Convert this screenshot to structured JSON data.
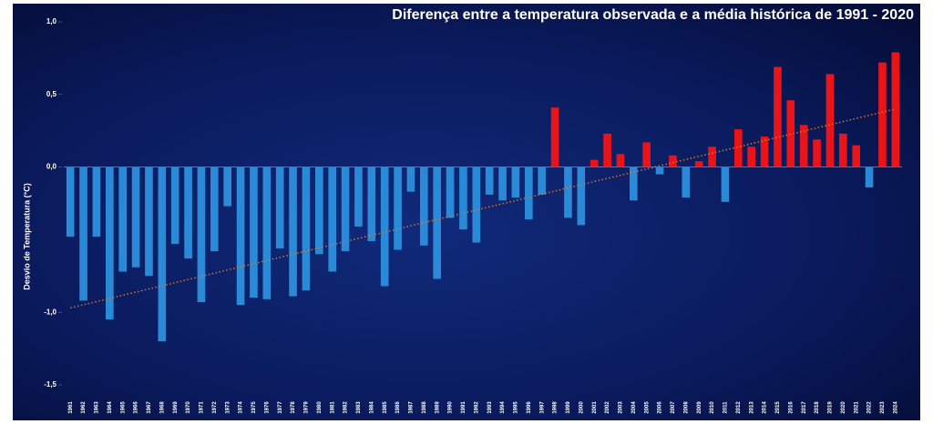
{
  "chart_data": {
    "type": "bar",
    "title": "Diferença entre a temperatura observada e a média histórica de 1991 - 2020",
    "y_label": "Desvio de Temperatura (°C)",
    "categories": [
      "1961",
      "1962",
      "1963",
      "1964",
      "1965",
      "1966",
      "1967",
      "1968",
      "1969",
      "1970",
      "1971",
      "1972",
      "1973",
      "1974",
      "1975",
      "1976",
      "1977",
      "1978",
      "1979",
      "1980",
      "1981",
      "1982",
      "1983",
      "1984",
      "1985",
      "1986",
      "1987",
      "1988",
      "1989",
      "1990",
      "1991",
      "1992",
      "1993",
      "1994",
      "1995",
      "1996",
      "1997",
      "1998",
      "1999",
      "2000",
      "2001",
      "2002",
      "2003",
      "2004",
      "2005",
      "2006",
      "2007",
      "2008",
      "2009",
      "2010",
      "2011",
      "2012",
      "2013",
      "2014",
      "2015",
      "2016",
      "2017",
      "2018",
      "2019",
      "2020",
      "2021",
      "2022",
      "2023",
      "2024"
    ],
    "values": [
      -0.48,
      -0.92,
      -0.48,
      -1.05,
      -0.72,
      -0.69,
      -0.75,
      -1.2,
      -0.53,
      -0.63,
      -0.93,
      -0.58,
      -0.27,
      -0.95,
      -0.9,
      -0.91,
      -0.56,
      -0.89,
      -0.85,
      -0.6,
      -0.72,
      -0.58,
      -0.41,
      -0.51,
      -0.82,
      -0.57,
      -0.17,
      -0.54,
      -0.77,
      -0.35,
      -0.43,
      -0.52,
      -0.19,
      -0.23,
      -0.21,
      -0.36,
      -0.19,
      0.41,
      -0.35,
      -0.4,
      0.05,
      0.23,
      0.09,
      -0.23,
      0.17,
      -0.05,
      0.08,
      -0.21,
      0.04,
      0.14,
      -0.24,
      0.26,
      0.14,
      0.21,
      0.69,
      0.46,
      0.29,
      0.19,
      0.64,
      0.23,
      0.15,
      -0.14,
      0.72,
      0.79
    ],
    "color_positive": "#e8141a",
    "color_negative": "#2b8ad8",
    "trend": [
      -0.97,
      0.4
    ],
    "trend_color": "#d9742a",
    "ylim": [
      -1.5,
      1.0
    ],
    "yticks": [
      {
        "value": 1.0,
        "label": "1,0"
      },
      {
        "value": 0.5,
        "label": "0,5"
      },
      {
        "value": 0,
        "label": "0,0"
      },
      {
        "value": -1.0,
        "label": "-1,0"
      },
      {
        "value": -1.5,
        "label": "-1,5"
      }
    ]
  }
}
